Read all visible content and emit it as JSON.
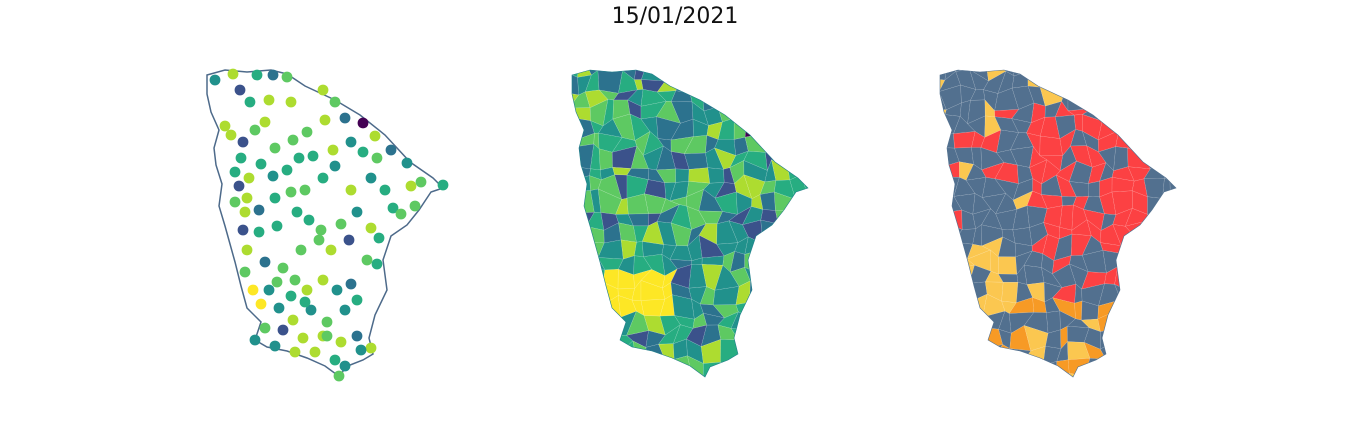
{
  "title": "15/01/2021",
  "maps": [
    {
      "kind": "point-stations",
      "state_outline_color": "#4d6a8a"
    },
    {
      "kind": "interpolated-choropleth"
    },
    {
      "kind": "classified-choropleth"
    }
  ],
  "colors": {
    "viridis": [
      "#440154",
      "#3b528b",
      "#2c728e",
      "#21918c",
      "#27ad81",
      "#5ec962",
      "#addc30",
      "#fde725"
    ],
    "class_palette": [
      "#52708f",
      "#fc4143",
      "#fbc750",
      "#f79a25"
    ]
  }
}
